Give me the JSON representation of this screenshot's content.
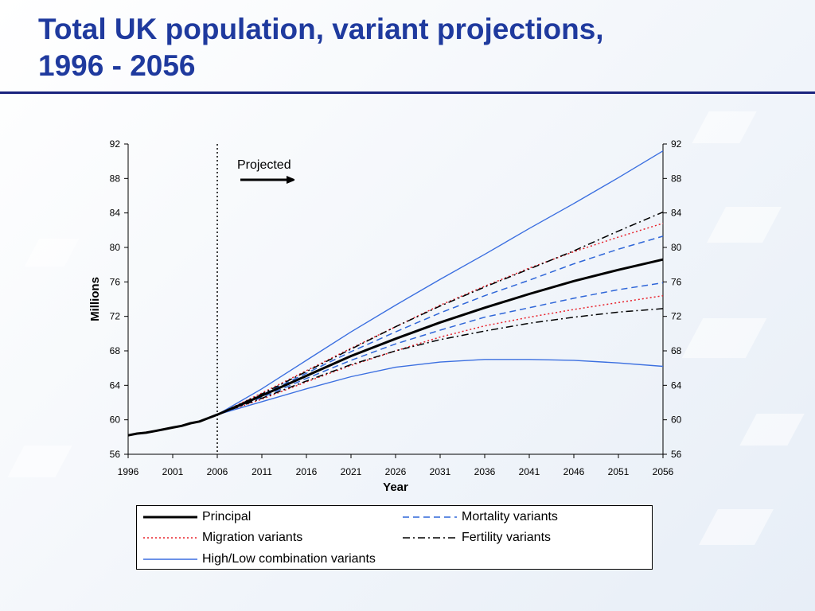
{
  "slide": {
    "title_line1": "Total UK population, variant projections,",
    "title_line2": "1996 - 2056"
  },
  "chart_data": {
    "type": "line",
    "xlabel": "Year",
    "ylabel": "Millions",
    "xlim": [
      1996,
      2056
    ],
    "ylim": [
      56,
      92
    ],
    "x_ticks": [
      1996,
      2001,
      2006,
      2011,
      2016,
      2021,
      2026,
      2031,
      2036,
      2041,
      2046,
      2051,
      2056
    ],
    "y_ticks": [
      56,
      60,
      64,
      68,
      72,
      76,
      80,
      84,
      88,
      92
    ],
    "secondary_y_axis": true,
    "grid": false,
    "legend_position": "bottom",
    "annotation": {
      "text": "Projected",
      "divider_year": 2006,
      "arrow_direction": "right"
    },
    "series": [
      {
        "name": "Principal",
        "style": "solid",
        "color": "#000000",
        "x": [
          1996,
          1997,
          1998,
          1999,
          2000,
          2001,
          2002,
          2003,
          2004,
          2005,
          2006,
          2011,
          2016,
          2021,
          2026,
          2031,
          2036,
          2041,
          2046,
          2051,
          2056
        ],
        "values": [
          58.2,
          58.4,
          58.5,
          58.7,
          58.9,
          59.1,
          59.3,
          59.6,
          59.8,
          60.2,
          60.6,
          62.8,
          65.1,
          67.4,
          69.4,
          71.3,
          73.0,
          74.6,
          76.1,
          77.4,
          78.6
        ]
      },
      {
        "name": "Migration variants",
        "style": "dotted",
        "color": "#e8202a",
        "x": [
          2006,
          2011,
          2016,
          2021,
          2026,
          2031,
          2036,
          2041,
          2046,
          2051,
          2056
        ],
        "values": [
          60.6,
          63.1,
          65.7,
          68.3,
          70.8,
          73.3,
          75.5,
          77.6,
          79.5,
          81.2,
          82.8
        ]
      },
      {
        "name": "Migration variants",
        "style": "dotted",
        "color": "#e8202a",
        "legend": false,
        "x": [
          2006,
          2011,
          2016,
          2021,
          2026,
          2031,
          2036,
          2041,
          2046,
          2051,
          2056
        ],
        "values": [
          60.6,
          62.4,
          64.4,
          66.3,
          68.0,
          69.6,
          70.9,
          71.9,
          72.8,
          73.6,
          74.4
        ]
      },
      {
        "name": "Mortality variants",
        "style": "dashed",
        "color": "#2f66d8",
        "x": [
          2006,
          2011,
          2016,
          2021,
          2026,
          2031,
          2036,
          2041,
          2046,
          2051,
          2056
        ],
        "values": [
          60.6,
          62.9,
          65.4,
          67.9,
          70.2,
          72.4,
          74.4,
          76.2,
          78.1,
          79.8,
          81.3
        ]
      },
      {
        "name": "Mortality variants",
        "style": "dashed",
        "color": "#2f66d8",
        "legend": false,
        "x": [
          2006,
          2011,
          2016,
          2021,
          2026,
          2031,
          2036,
          2041,
          2046,
          2051,
          2056
        ],
        "values": [
          60.6,
          62.6,
          64.8,
          66.9,
          68.8,
          70.4,
          71.9,
          73.0,
          74.1,
          75.1,
          75.9
        ]
      },
      {
        "name": "Fertility variants",
        "style": "dashdot",
        "color": "#000000",
        "x": [
          2006,
          2011,
          2016,
          2021,
          2026,
          2031,
          2036,
          2041,
          2046,
          2051,
          2056
        ],
        "values": [
          60.6,
          63.0,
          65.6,
          68.2,
          70.8,
          73.2,
          75.4,
          77.5,
          79.6,
          81.9,
          84.1
        ]
      },
      {
        "name": "Fertility variants",
        "style": "dashdot",
        "color": "#000000",
        "legend": false,
        "x": [
          2006,
          2011,
          2016,
          2021,
          2026,
          2031,
          2036,
          2041,
          2046,
          2051,
          2056
        ],
        "values": [
          60.6,
          62.5,
          64.5,
          66.4,
          68.0,
          69.3,
          70.3,
          71.2,
          71.9,
          72.5,
          72.9
        ]
      },
      {
        "name": "High/Low combination variants",
        "style": "solid-thin",
        "color": "#3b6fe0",
        "x": [
          2006,
          2011,
          2016,
          2021,
          2026,
          2031,
          2036,
          2041,
          2046,
          2051,
          2056
        ],
        "values": [
          60.6,
          63.6,
          66.9,
          70.2,
          73.3,
          76.3,
          79.2,
          82.2,
          85.1,
          88.1,
          91.2
        ]
      },
      {
        "name": "High/Low combination variants",
        "style": "solid-thin",
        "color": "#3b6fe0",
        "legend": false,
        "x": [
          2006,
          2011,
          2016,
          2021,
          2026,
          2031,
          2036,
          2041,
          2046,
          2051,
          2056
        ],
        "values": [
          60.6,
          62.1,
          63.6,
          65.0,
          66.1,
          66.7,
          67.0,
          67.0,
          66.9,
          66.6,
          66.2
        ]
      }
    ],
    "legend_entries": [
      {
        "label": "Principal",
        "style": "solid",
        "color": "#000000"
      },
      {
        "label": "Mortality variants",
        "style": "dashed",
        "color": "#2f66d8"
      },
      {
        "label": "Migration variants",
        "style": "dotted",
        "color": "#e8202a"
      },
      {
        "label": "Fertility variants",
        "style": "dashdot",
        "color": "#000000"
      },
      {
        "label": "High/Low combination variants",
        "style": "solid-thin",
        "color": "#3b6fe0"
      }
    ]
  }
}
